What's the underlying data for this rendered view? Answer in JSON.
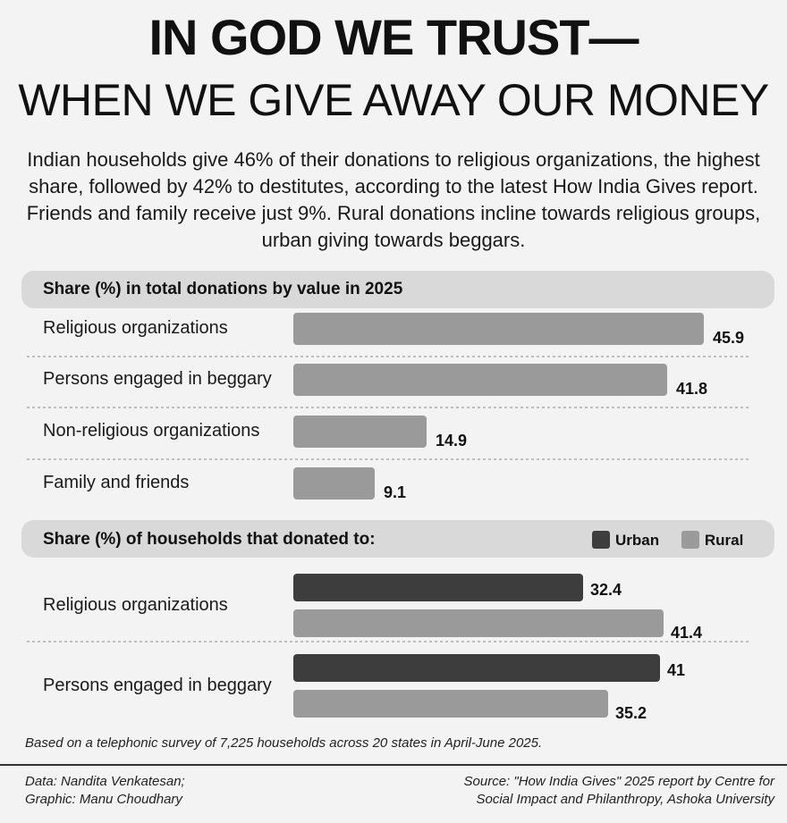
{
  "header": {
    "title_line1": "IN GOD WE TRUST—",
    "title_line2": "WHEN WE GIVE AWAY OUR MONEY",
    "intro": "Indian households give 46% of their donations to religious organizations, the highest share, followed by 42% to destitutes, according to the latest How India Gives report. Friends and family receive just 9%. Rural donations incline towards religious groups, urban giving towards beggars."
  },
  "colors": {
    "bar_light": "#9a9a9a",
    "bar_dark": "#3d3d3d",
    "band": "#d9d9d9"
  },
  "chart_data": [
    {
      "type": "bar",
      "orientation": "horizontal",
      "title": "Share (%) in total donations by value in 2025",
      "categories": [
        "Religious organizations",
        "Persons engaged in beggary",
        "Non-religious organizations",
        "Family and friends"
      ],
      "values": [
        45.9,
        41.8,
        14.9,
        9.1
      ],
      "value_labels": [
        "45.9",
        "41.8",
        "14.9",
        "9.1"
      ]
    },
    {
      "type": "bar",
      "orientation": "horizontal",
      "title": "Share (%) of households that donated to:",
      "categories": [
        "Religious organizations",
        "Persons engaged in beggary"
      ],
      "series": [
        {
          "name": "Urban",
          "values": [
            32.4,
            41
          ],
          "value_labels": [
            "32.4",
            "41"
          ]
        },
        {
          "name": "Rural",
          "values": [
            41.4,
            35.2
          ],
          "value_labels": [
            "41.4",
            "35.2"
          ]
        }
      ],
      "legend": "top-right"
    }
  ],
  "footer": {
    "note": "Based on a telephonic survey of 7,225 households across 20 states in April-June 2025.",
    "credit_line1": "Data: Nandita Venkatesan;",
    "credit_line2": "Graphic: Manu Choudhary",
    "source_line1": "Source: \"How India Gives\" 2025 report by Centre for",
    "source_line2": "Social Impact and Philanthropy, Ashoka University"
  }
}
